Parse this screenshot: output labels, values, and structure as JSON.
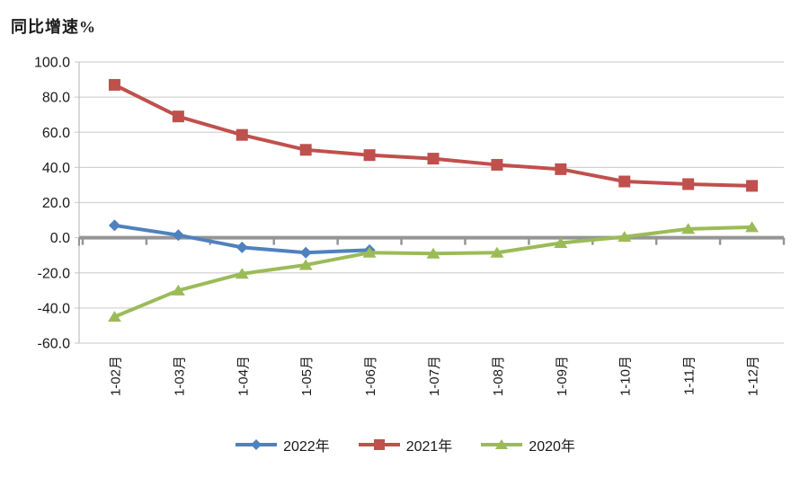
{
  "chart_data": {
    "type": "line",
    "title": "同比增速%",
    "categories": [
      "1-02月",
      "1-03月",
      "1-04月",
      "1-05月",
      "1-06月",
      "1-07月",
      "1-08月",
      "1-09月",
      "1-10月",
      "1-11月",
      "1-12月"
    ],
    "y_tick_labels": [
      "100.0",
      "80.0",
      "60.0",
      "40.0",
      "20.0",
      "0.0",
      "-20.0",
      "-40.0",
      "-60.0"
    ],
    "ylim": [
      -60,
      100
    ],
    "ytick_step": 20,
    "grid": true,
    "legend_position": "bottom",
    "series": [
      {
        "name": "2022年",
        "color": "#4F81BD",
        "marker": "diamond",
        "values": [
          7.0,
          1.5,
          -5.5,
          -8.5,
          -7.0
        ]
      },
      {
        "name": "2021年",
        "color": "#C0504D",
        "marker": "square",
        "values": [
          87.0,
          69.0,
          58.5,
          50.0,
          47.0,
          45.0,
          41.5,
          39.0,
          32.0,
          30.5,
          29.5
        ]
      },
      {
        "name": "2020年",
        "color": "#9BBB59",
        "marker": "triangle",
        "values": [
          -45.0,
          -30.0,
          -20.5,
          -15.5,
          -8.5,
          -9.0,
          -8.5,
          -3.0,
          0.5,
          5.0,
          6.0
        ]
      }
    ],
    "colors": {
      "gridline": "#D3D3D3",
      "axis_line": "#BFBFBF",
      "zero_line": "#959595",
      "tick_text": "#1a1a1a"
    }
  }
}
